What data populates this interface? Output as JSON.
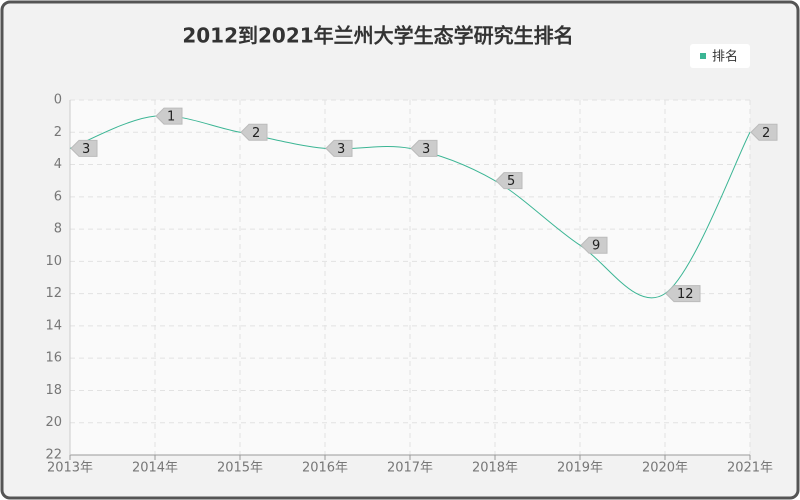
{
  "chart_data": {
    "type": "line",
    "title": "2012到2021年兰州大学生态学研究生排名",
    "categories": [
      "2013年",
      "2014年",
      "2015年",
      "2016年",
      "2017年",
      "2018年",
      "2019年",
      "2020年",
      "2021年"
    ],
    "series": [
      {
        "name": "排名",
        "color": "#3bb594",
        "values": [
          3,
          1,
          2,
          3,
          3,
          5,
          9,
          12,
          2
        ]
      }
    ],
    "ylim": [
      0,
      22
    ],
    "y_inverted": true,
    "yticks": [
      0,
      2,
      4,
      6,
      8,
      10,
      12,
      14,
      16,
      18,
      20,
      22
    ],
    "grid": true,
    "smooth": true,
    "legend": "top-right"
  }
}
